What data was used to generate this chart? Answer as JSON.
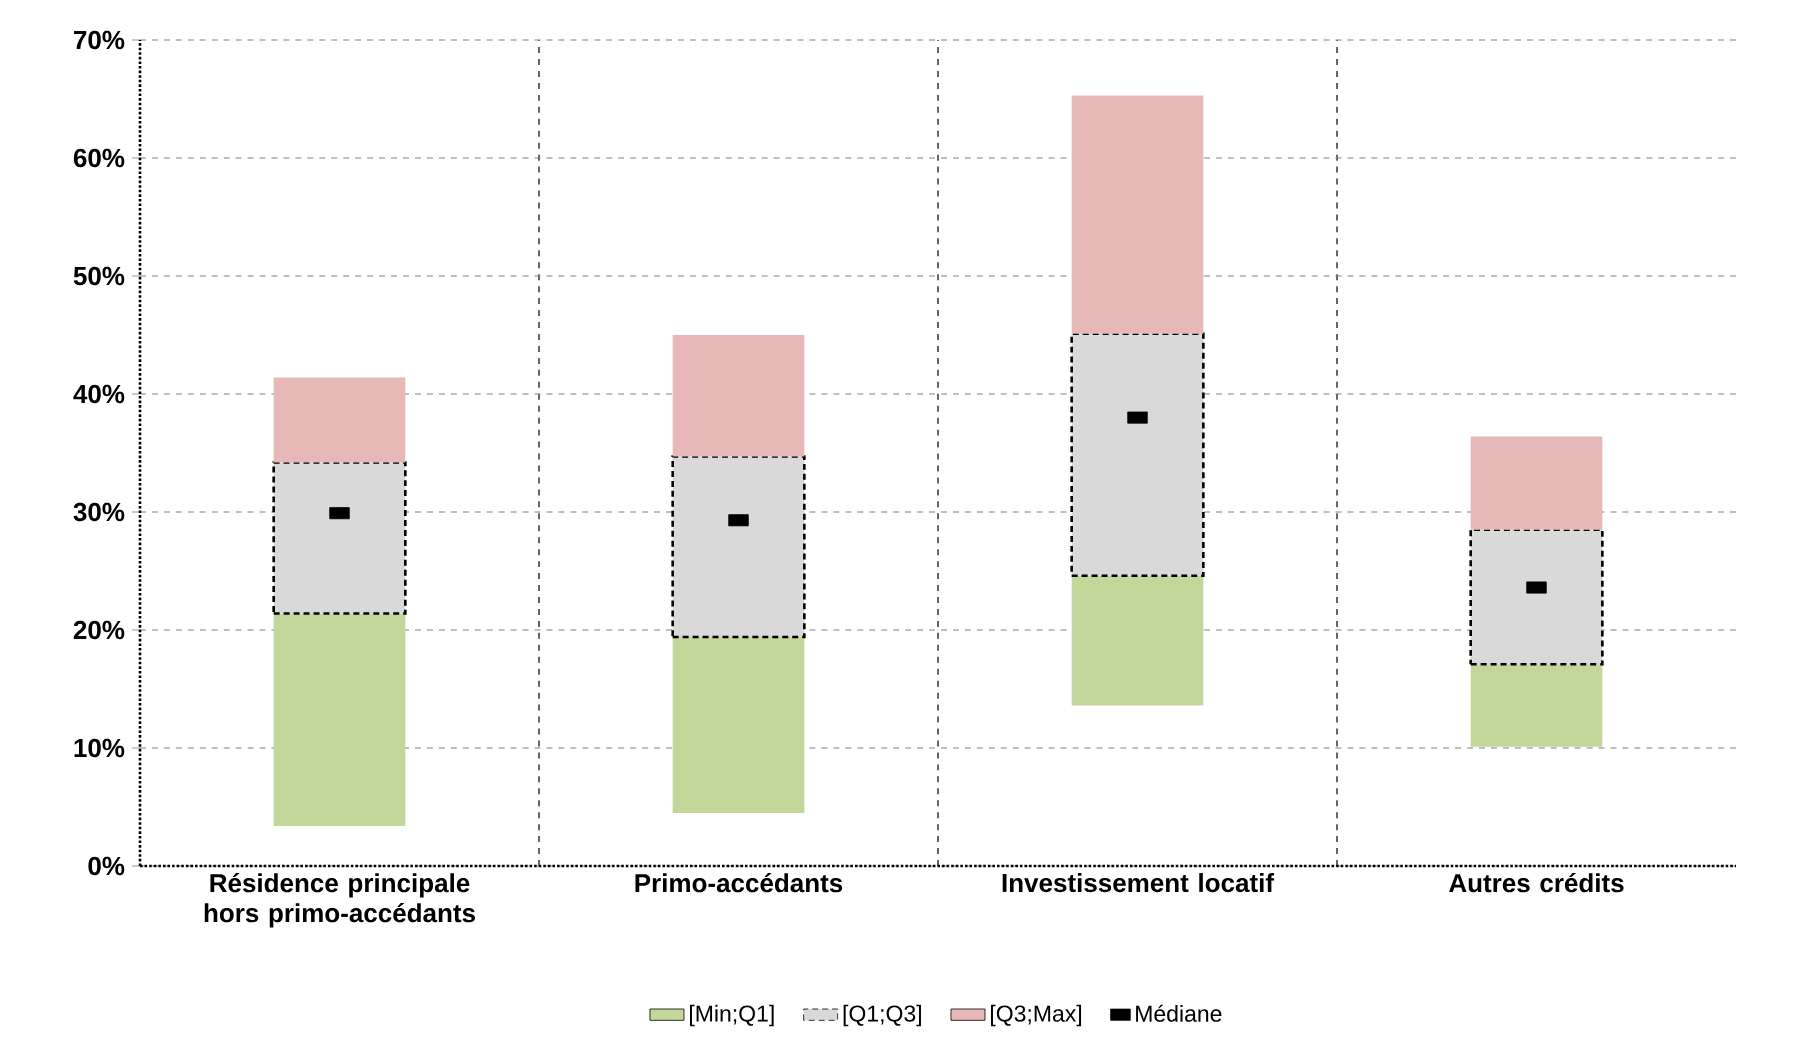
{
  "chart_data": {
    "type": "bar",
    "categories": [
      "Résidence principale hors primo-accédants",
      "Primo-accédants",
      "Investissement locatif",
      "Autres crédits"
    ],
    "series": [
      {
        "name": "[Min;Q1]",
        "color": "#c4d79b",
        "base": [
          3.4,
          4.5,
          13.6,
          10.1
        ],
        "values": [
          18.0,
          14.9,
          11.0,
          7.0
        ]
      },
      {
        "name": "[Q1;Q3]",
        "color": "#d9d9d9",
        "base": [
          21.4,
          19.4,
          24.6,
          17.1
        ],
        "values": [
          12.8,
          15.3,
          20.5,
          11.4
        ]
      },
      {
        "name": "[Q3;Max]",
        "color": "#e6b9b8",
        "base": [
          34.2,
          34.7,
          45.1,
          28.5
        ],
        "values": [
          7.2,
          10.3,
          20.2,
          7.9
        ]
      },
      {
        "name": "Médiane",
        "type": "scatter",
        "marker": "square",
        "color": "#000000",
        "values": [
          29.9,
          29.3,
          38.0,
          23.6
        ]
      }
    ],
    "ylim": [
      0,
      70
    ],
    "yticks": [
      {
        "value": 0,
        "label": "0%"
      },
      {
        "value": 10,
        "label": "10%"
      },
      {
        "value": 20,
        "label": "20%"
      },
      {
        "value": 30,
        "label": "30%"
      },
      {
        "value": 40,
        "label": "40%"
      },
      {
        "value": 50,
        "label": "50%"
      },
      {
        "value": 60,
        "label": "60%"
      },
      {
        "value": 70,
        "label": "70%"
      }
    ],
    "grid": true,
    "legend": "bottom"
  }
}
